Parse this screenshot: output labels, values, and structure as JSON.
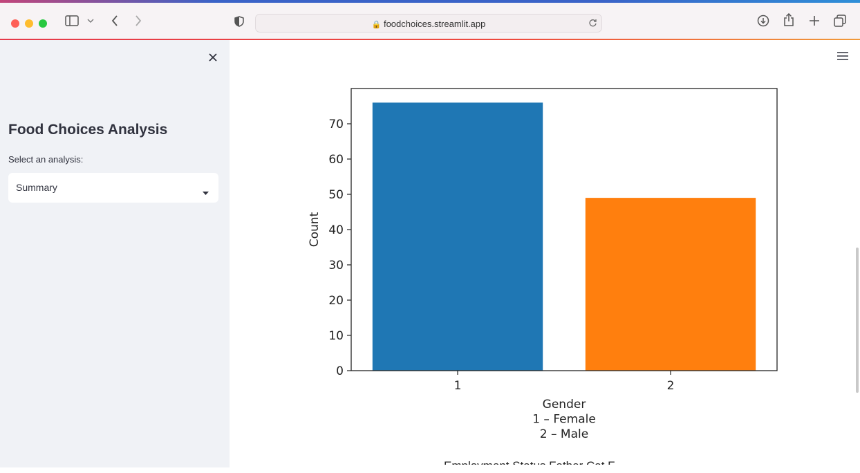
{
  "browser": {
    "url": "foodchoices.streamlit.app"
  },
  "sidebar": {
    "title": "Food Choices Analysis",
    "select_label": "Select an analysis:",
    "select_value": "Summary"
  },
  "main": {
    "partial_next_title": "Employment Status    Father Cat F..."
  },
  "chart_data": {
    "type": "bar",
    "categories": [
      "1",
      "2"
    ],
    "values": [
      76,
      49
    ],
    "colors": [
      "#1f77b4",
      "#ff7f0e"
    ],
    "xlabel_lines": [
      "Gender",
      "1 – Female",
      "2 – Male"
    ],
    "ylabel": "Count",
    "ylim": [
      0,
      80
    ],
    "yticks": [
      "0",
      "10",
      "20",
      "30",
      "40",
      "50",
      "60",
      "70"
    ],
    "grid": false
  }
}
